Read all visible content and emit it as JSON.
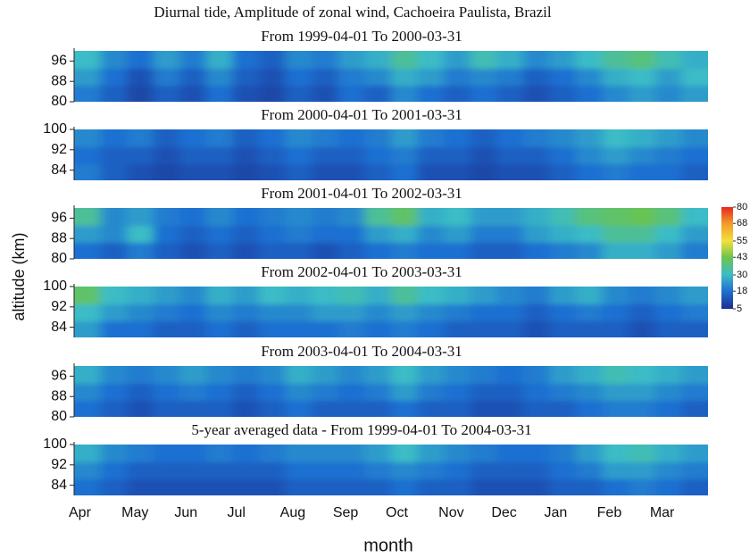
{
  "chart_data": {
    "type": "heatmap",
    "title": "Diurnal tide, Amplitude of zonal wind, Cachoeira Paulista, Brazil",
    "x_label": "month",
    "y_label": "altitude (km)",
    "categories": [
      "Apr",
      "May",
      "Jun",
      "Jul",
      "Aug",
      "Sep",
      "Oct",
      "Nov",
      "Dec",
      "Jan",
      "Feb",
      "Mar"
    ],
    "colorbar": {
      "lim": [
        5,
        80
      ],
      "ticks": [
        5,
        18,
        30,
        43,
        55,
        68,
        80
      ],
      "colors": [
        "#1b2f8f",
        "#1f6fd1",
        "#3bbcc6",
        "#6cc44c",
        "#f3e03a",
        "#f39a2a",
        "#e6281e"
      ]
    },
    "panels": [
      {
        "title": "From 1999-04-01 To 2000-03-31",
        "ylim": [
          80,
          100
        ],
        "yticks": [
          80,
          88,
          96
        ],
        "z": [
          [
            20,
            15,
            10,
            15,
            12,
            18,
            12,
            10,
            15,
            12,
            18,
            15,
            22,
            18,
            15,
            18,
            15,
            12,
            15,
            18,
            22,
            25,
            22,
            25
          ],
          [
            25,
            18,
            12,
            20,
            15,
            22,
            15,
            12,
            18,
            15,
            20,
            22,
            28,
            25,
            20,
            22,
            20,
            15,
            18,
            22,
            28,
            30,
            25,
            30
          ],
          [
            30,
            22,
            18,
            25,
            20,
            28,
            18,
            15,
            22,
            20,
            25,
            28,
            35,
            30,
            25,
            32,
            28,
            22,
            25,
            30,
            35,
            38,
            32,
            28
          ]
        ]
      },
      {
        "title": "From 2000-04-01 To 2001-03-31",
        "ylim": [
          80,
          100
        ],
        "yticks": [
          84,
          92,
          100
        ],
        "z": [
          [
            20,
            15,
            12,
            10,
            12,
            12,
            10,
            12,
            15,
            12,
            12,
            15,
            18,
            12,
            12,
            10,
            12,
            12,
            15,
            18,
            20,
            18,
            18,
            15
          ],
          [
            18,
            15,
            15,
            12,
            15,
            15,
            12,
            15,
            18,
            15,
            15,
            18,
            20,
            15,
            15,
            12,
            15,
            15,
            18,
            22,
            25,
            22,
            20,
            18
          ],
          [
            22,
            18,
            20,
            15,
            18,
            20,
            15,
            18,
            22,
            20,
            18,
            20,
            25,
            20,
            18,
            15,
            18,
            20,
            22,
            25,
            30,
            28,
            25,
            22
          ]
        ]
      },
      {
        "title": "From 2001-04-01 To 2002-03-31",
        "ylim": [
          80,
          100
        ],
        "yticks": [
          80,
          88,
          96
        ],
        "z": [
          [
            18,
            15,
            20,
            15,
            12,
            15,
            12,
            15,
            15,
            12,
            15,
            18,
            20,
            18,
            18,
            15,
            15,
            18,
            20,
            22,
            28,
            28,
            25,
            20
          ],
          [
            25,
            22,
            30,
            18,
            15,
            18,
            15,
            18,
            20,
            18,
            18,
            25,
            28,
            22,
            25,
            20,
            20,
            25,
            28,
            30,
            35,
            35,
            30,
            25
          ],
          [
            35,
            22,
            25,
            20,
            18,
            22,
            18,
            20,
            22,
            20,
            22,
            35,
            40,
            28,
            30,
            25,
            25,
            28,
            32,
            38,
            40,
            42,
            38,
            30
          ]
        ]
      },
      {
        "title": "From 2002-04-01 To 2003-03-31",
        "ylim": [
          80,
          100
        ],
        "yticks": [
          84,
          92,
          100
        ],
        "z": [
          [
            25,
            18,
            18,
            15,
            15,
            18,
            15,
            18,
            18,
            18,
            20,
            18,
            20,
            18,
            15,
            15,
            15,
            12,
            15,
            15,
            15,
            12,
            15,
            15
          ],
          [
            30,
            25,
            22,
            20,
            18,
            22,
            20,
            22,
            22,
            25,
            25,
            22,
            25,
            22,
            20,
            18,
            18,
            15,
            18,
            20,
            18,
            15,
            18,
            20
          ],
          [
            40,
            30,
            28,
            25,
            22,
            28,
            25,
            30,
            28,
            30,
            32,
            28,
            35,
            30,
            28,
            25,
            22,
            20,
            25,
            28,
            22,
            20,
            22,
            25
          ]
        ]
      },
      {
        "title": "From 2003-04-01 To 2004-03-31",
        "ylim": [
          80,
          100
        ],
        "yticks": [
          80,
          88,
          96
        ],
        "z": [
          [
            18,
            15,
            12,
            15,
            15,
            15,
            12,
            15,
            18,
            15,
            15,
            15,
            18,
            15,
            15,
            12,
            12,
            15,
            15,
            18,
            20,
            20,
            18,
            15
          ],
          [
            22,
            18,
            15,
            18,
            20,
            18,
            15,
            18,
            22,
            20,
            18,
            20,
            25,
            20,
            18,
            15,
            15,
            18,
            20,
            22,
            25,
            25,
            22,
            20
          ],
          [
            28,
            22,
            20,
            22,
            25,
            22,
            20,
            22,
            28,
            25,
            22,
            25,
            30,
            25,
            22,
            20,
            18,
            20,
            25,
            28,
            32,
            30,
            28,
            25
          ]
        ]
      },
      {
        "title": "5-year averaged data - From 1999-04-01 To 2004-03-31",
        "ylim": [
          80,
          100
        ],
        "yticks": [
          84,
          92,
          100
        ],
        "z": [
          [
            18,
            15,
            12,
            12,
            12,
            12,
            12,
            12,
            15,
            15,
            15,
            15,
            18,
            15,
            15,
            12,
            12,
            12,
            15,
            15,
            18,
            20,
            18,
            15
          ],
          [
            22,
            18,
            15,
            15,
            15,
            15,
            15,
            15,
            18,
            18,
            18,
            20,
            22,
            20,
            18,
            15,
            15,
            15,
            18,
            20,
            25,
            25,
            22,
            20
          ],
          [
            28,
            22,
            20,
            18,
            18,
            20,
            18,
            20,
            22,
            22,
            22,
            25,
            30,
            25,
            22,
            20,
            18,
            18,
            20,
            25,
            30,
            32,
            28,
            25
          ]
        ]
      }
    ]
  }
}
